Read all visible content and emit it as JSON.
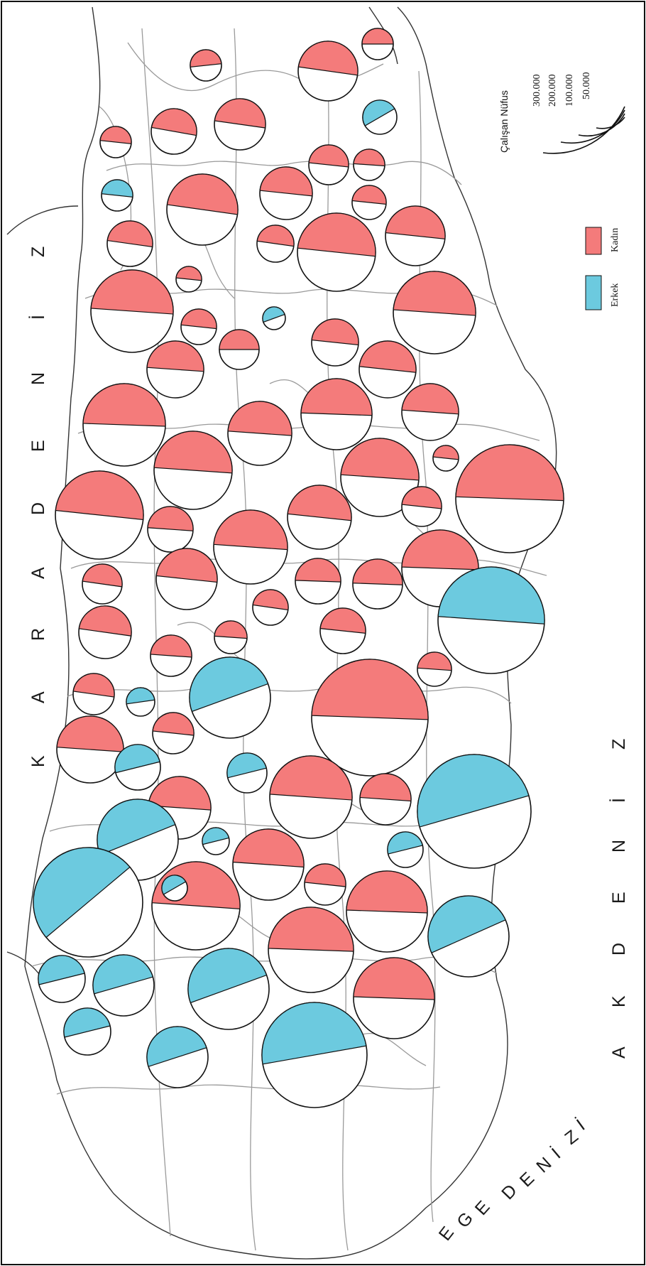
{
  "title": "",
  "seas": {
    "black_sea": [
      "K",
      "A",
      "R",
      "A",
      "D",
      "E",
      "N",
      "İ",
      "Z"
    ],
    "mediterranean": [
      "A",
      "K",
      "D",
      "E",
      "N",
      "İ",
      "Z"
    ],
    "aegean": [
      "E",
      "G",
      "E",
      " ",
      "D",
      "E",
      "N",
      "İ",
      "Z",
      "İ"
    ]
  },
  "legend": {
    "title": "Çalışan Nüfus",
    "sizes": [
      "300.000",
      "200.000",
      "100.000",
      "50.000"
    ],
    "categories": [
      {
        "label": "Kadın",
        "color": "#f47b7b"
      },
      {
        "label": "Erkek",
        "color": "#6ccadf"
      }
    ]
  },
  "colors": {
    "kadin": "#f47b7b",
    "erkek": "#6ccadf",
    "border": "#9a9a9a",
    "outline": "#111111"
  },
  "map_data": {
    "type": "proportional-pie-map",
    "orientation": "rotated 90° clockwise (north to the left)",
    "note_fields": "Each province symbol: dominant group shown by colored wedge; values read from circle size only",
    "province_count": 81
  }
}
